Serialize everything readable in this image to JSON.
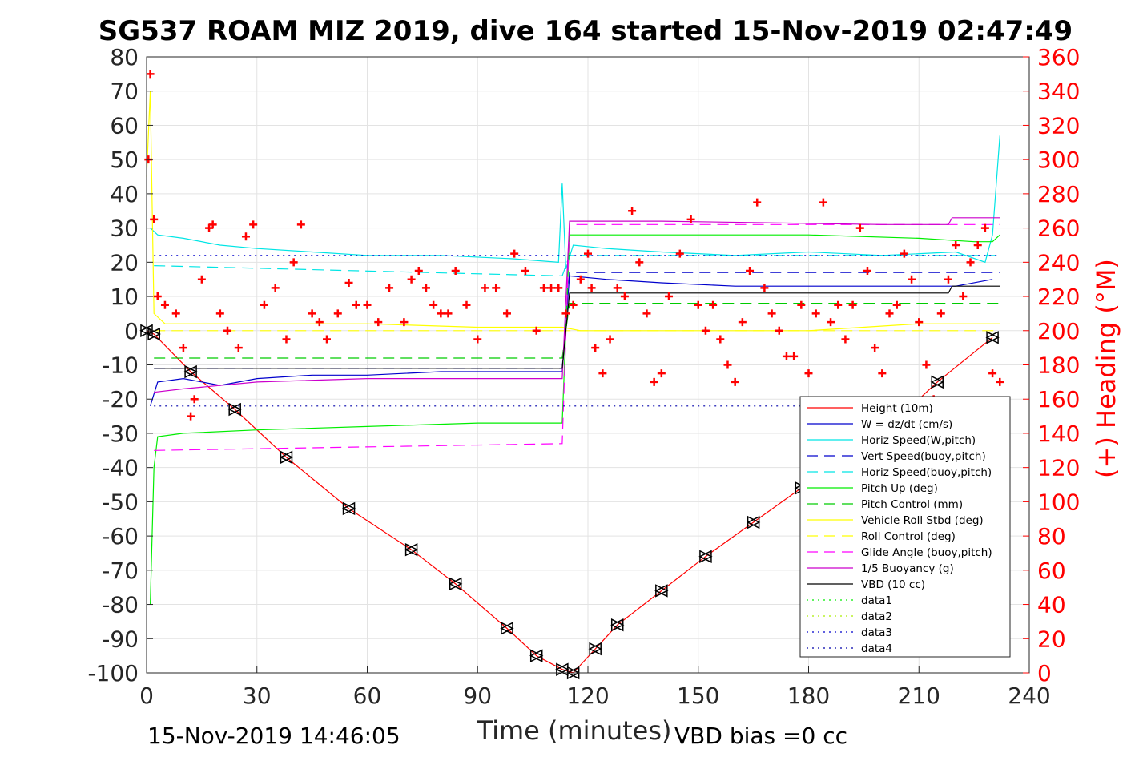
{
  "chart_data": {
    "type": "line",
    "title": "SG537 ROAM MIZ 2019, dive 164 started 15-Nov-2019 02:47:49",
    "xlabel": "Time (minutes)",
    "ylabel_right": "(+) Heading (°M)",
    "xlim": [
      0,
      240
    ],
    "ylim": [
      -100,
      80
    ],
    "ylim_right": [
      0,
      360
    ],
    "x_ticks": [
      "0",
      "30",
      "60",
      "90",
      "120",
      "150",
      "180",
      "210",
      "240"
    ],
    "y_ticks": [
      "80",
      "70",
      "60",
      "50",
      "40",
      "30",
      "20",
      "10",
      "0",
      "-10",
      "-20",
      "-30",
      "-40",
      "-50",
      "-60",
      "-70",
      "-80",
      "-90",
      "-100"
    ],
    "y_ticks_right": [
      "360",
      "340",
      "320",
      "300",
      "280",
      "260",
      "240",
      "220",
      "200",
      "180",
      "160",
      "140",
      "120",
      "100",
      "80",
      "60",
      "40",
      "20",
      "0"
    ],
    "grid": true,
    "legend_position": "bottom-right",
    "footer_left": "15-Nov-2019 14:46:05",
    "footer_right": "VBD bias =0 cc",
    "series": [
      {
        "name": "Height (10m)",
        "color": "#ff0000",
        "style": "solid",
        "x": [
          0,
          2,
          12,
          24,
          38,
          55,
          72,
          84,
          98,
          106,
          113,
          116,
          122,
          128,
          140,
          152,
          165,
          178,
          190,
          205,
          215,
          230
        ],
        "y": [
          0,
          -1,
          -12,
          -23,
          -37,
          -52,
          -64,
          -74,
          -87,
          -95,
          -99,
          -100,
          -93,
          -86,
          -76,
          -66,
          -56,
          -46,
          -35,
          -25,
          -15,
          -2
        ]
      },
      {
        "name": "W = dz/dt (cm/s)",
        "color": "#0000cc",
        "style": "solid",
        "x": [
          1,
          3,
          10,
          20,
          30,
          45,
          60,
          80,
          100,
          113,
          115,
          125,
          140,
          160,
          180,
          200,
          220,
          230
        ],
        "y": [
          -22,
          -15,
          -14,
          -16,
          -14,
          -13,
          -13,
          -12,
          -12,
          -12,
          16,
          15,
          14,
          13,
          13,
          13,
          13,
          15
        ]
      },
      {
        "name": "Horiz Speed(W,pitch)",
        "color": "#00e5e5",
        "style": "solid",
        "x": [
          1,
          3,
          10,
          20,
          30,
          45,
          60,
          80,
          100,
          112,
          113,
          114,
          116,
          125,
          140,
          160,
          180,
          200,
          220,
          228,
          230,
          232
        ],
        "y": [
          30,
          28,
          27,
          25,
          24,
          23,
          22,
          22,
          21,
          20,
          43,
          18,
          25,
          24,
          23,
          22,
          23,
          22,
          23,
          20,
          28,
          57
        ]
      },
      {
        "name": "Vert Speed(buoy,pitch)",
        "color": "#0000cc",
        "style": "dashed",
        "x": [
          2,
          113,
          115,
          232
        ],
        "y": [
          -11,
          -11,
          17,
          17
        ]
      },
      {
        "name": "Horiz Speed(buoy,pitch)",
        "color": "#00e5e5",
        "style": "dashed",
        "x": [
          2,
          113,
          115,
          232
        ],
        "y": [
          19,
          16,
          22,
          22
        ]
      },
      {
        "name": "Pitch Up (deg)",
        "color": "#00ee00",
        "style": "solid",
        "x": [
          1,
          2,
          3,
          10,
          30,
          60,
          90,
          113,
          115,
          140,
          180,
          210,
          225,
          230,
          232
        ],
        "y": [
          -80,
          -40,
          -31,
          -30,
          -29,
          -28,
          -27,
          -27,
          28,
          28,
          28,
          27,
          26,
          26,
          28
        ]
      },
      {
        "name": "Pitch Control (mm)",
        "color": "#00cc00",
        "style": "dashed",
        "x": [
          2,
          113,
          115,
          232
        ],
        "y": [
          -8,
          -8,
          8,
          8
        ]
      },
      {
        "name": "Vehicle Roll Stbd (deg)",
        "color": "#ffff00",
        "style": "solid",
        "x": [
          0,
          1,
          2,
          5,
          30,
          60,
          90,
          113,
          118,
          150,
          180,
          210,
          232
        ],
        "y": [
          45,
          70,
          5,
          2,
          2,
          2,
          1,
          1,
          0,
          0,
          0,
          2,
          2
        ]
      },
      {
        "name": "Roll Control (deg)",
        "color": "#ffff00",
        "style": "dashed",
        "x": [
          2,
          232
        ],
        "y": [
          0,
          0
        ]
      },
      {
        "name": "Glide Angle (buoy,pitch)",
        "color": "#ff00ff",
        "style": "dashed",
        "x": [
          2,
          113,
          115,
          232
        ],
        "y": [
          -35,
          -33,
          31,
          31
        ]
      },
      {
        "name": "1/5 Buoyancy (g)",
        "color": "#cc00cc",
        "style": "solid",
        "x": [
          2,
          10,
          30,
          60,
          90,
          113,
          115,
          140,
          200,
          218,
          219,
          232
        ],
        "y": [
          -18,
          -17,
          -15,
          -14,
          -14,
          -14,
          32,
          32,
          31,
          31,
          33,
          33
        ]
      },
      {
        "name": "VBD (10 cc)",
        "color": "#000000",
        "style": "solid",
        "x": [
          2,
          113,
          115,
          218,
          219,
          232
        ],
        "y": [
          -11,
          -11,
          11,
          11,
          13,
          13
        ]
      },
      {
        "name": "data1",
        "color": "#00ee00",
        "style": "dotted",
        "x": [],
        "y": []
      },
      {
        "name": "data2",
        "color": "#aaee00",
        "style": "dotted",
        "x": [],
        "y": []
      },
      {
        "name": "data3",
        "color": "#0000cc",
        "style": "dotted",
        "x": [
          2,
          232
        ],
        "y": [
          22,
          22
        ]
      },
      {
        "name": "data4",
        "color": "#0000aa",
        "style": "dotted",
        "x": [
          2,
          232
        ],
        "y": [
          -22,
          -22
        ]
      }
    ],
    "heading_series": {
      "name": "Heading (°M)",
      "color": "#ff0000",
      "marker": "+",
      "x": [
        0.5,
        1,
        2,
        3,
        5,
        8,
        10,
        12,
        13,
        15,
        17,
        18,
        20,
        22,
        25,
        27,
        29,
        32,
        35,
        38,
        40,
        42,
        45,
        47,
        49,
        52,
        55,
        57,
        60,
        63,
        66,
        70,
        72,
        74,
        76,
        78,
        80,
        82,
        84,
        87,
        90,
        92,
        95,
        98,
        100,
        103,
        106,
        108,
        110,
        112,
        114,
        116,
        118,
        120,
        121,
        122,
        124,
        126,
        128,
        130,
        132,
        134,
        136,
        138,
        140,
        142,
        145,
        148,
        150,
        152,
        154,
        156,
        158,
        160,
        162,
        164,
        166,
        168,
        170,
        172,
        174,
        176,
        178,
        180,
        182,
        184,
        186,
        188,
        190,
        192,
        194,
        196,
        198,
        200,
        202,
        204,
        206,
        208,
        210,
        212,
        214,
        216,
        218,
        220,
        222,
        224,
        226,
        228,
        230,
        232
      ],
      "y": [
        300,
        350,
        265,
        220,
        215,
        210,
        190,
        150,
        160,
        230,
        260,
        262,
        210,
        200,
        190,
        255,
        262,
        215,
        225,
        195,
        240,
        262,
        210,
        205,
        195,
        210,
        228,
        215,
        215,
        205,
        225,
        205,
        230,
        235,
        225,
        215,
        210,
        210,
        235,
        215,
        195,
        225,
        225,
        210,
        245,
        235,
        200,
        225,
        225,
        225,
        210,
        215,
        230,
        245,
        225,
        190,
        175,
        195,
        225,
        220,
        270,
        240,
        210,
        170,
        175,
        220,
        245,
        265,
        215,
        200,
        215,
        195,
        180,
        170,
        205,
        235,
        275,
        225,
        210,
        200,
        185,
        185,
        215,
        175,
        210,
        275,
        205,
        215,
        195,
        215,
        260,
        235,
        190,
        175,
        210,
        215,
        245,
        230,
        205,
        180,
        160,
        210,
        230,
        250,
        220,
        240,
        250,
        260,
        175,
        170
      ]
    }
  }
}
